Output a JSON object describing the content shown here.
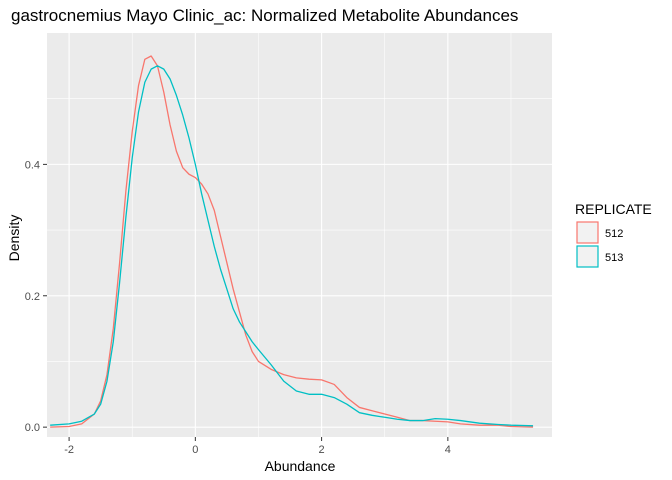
{
  "chart_data": {
    "type": "line",
    "title": "gastrocnemius Mayo Clinic_ac: Normalized Metabolite Abundances",
    "xlabel": "Abundance",
    "ylabel": "Density",
    "xlim": [
      -2.35,
      5.65
    ],
    "ylim": [
      -0.015,
      0.6
    ],
    "x_ticks": [
      -2,
      0,
      2,
      4
    ],
    "y_ticks": [
      0.0,
      0.2,
      0.4
    ],
    "x_tick_labels": [
      "-2",
      "0",
      "2",
      "4"
    ],
    "y_tick_labels": [
      "0.0",
      "0.2",
      "0.4"
    ],
    "grid": true,
    "legend": {
      "title": "REPLICATE",
      "position": "right"
    },
    "series": [
      {
        "name": "512",
        "color": "#F8766D",
        "x": [
          -2.3,
          -2.0,
          -1.8,
          -1.6,
          -1.5,
          -1.4,
          -1.3,
          -1.2,
          -1.1,
          -1.0,
          -0.9,
          -0.8,
          -0.7,
          -0.6,
          -0.5,
          -0.4,
          -0.3,
          -0.2,
          -0.1,
          0.0,
          0.1,
          0.2,
          0.3,
          0.4,
          0.5,
          0.6,
          0.7,
          0.8,
          0.9,
          1.0,
          1.2,
          1.4,
          1.6,
          1.8,
          2.0,
          2.2,
          2.4,
          2.6,
          2.8,
          3.0,
          3.2,
          3.4,
          3.6,
          3.8,
          4.0,
          4.2,
          4.5,
          4.8,
          5.0,
          5.35
        ],
        "y": [
          0.0,
          0.001,
          0.005,
          0.02,
          0.04,
          0.08,
          0.15,
          0.25,
          0.36,
          0.45,
          0.52,
          0.56,
          0.565,
          0.55,
          0.51,
          0.46,
          0.42,
          0.395,
          0.385,
          0.38,
          0.37,
          0.355,
          0.33,
          0.29,
          0.25,
          0.21,
          0.175,
          0.14,
          0.115,
          0.1,
          0.088,
          0.08,
          0.075,
          0.073,
          0.072,
          0.065,
          0.045,
          0.03,
          0.025,
          0.02,
          0.015,
          0.01,
          0.01,
          0.009,
          0.008,
          0.005,
          0.003,
          0.003,
          0.001,
          0.0
        ]
      },
      {
        "name": "513",
        "color": "#00BFC4",
        "x": [
          -2.3,
          -2.0,
          -1.8,
          -1.6,
          -1.5,
          -1.4,
          -1.3,
          -1.2,
          -1.1,
          -1.0,
          -0.9,
          -0.8,
          -0.7,
          -0.6,
          -0.5,
          -0.4,
          -0.3,
          -0.2,
          -0.1,
          0.0,
          0.1,
          0.2,
          0.3,
          0.4,
          0.5,
          0.6,
          0.7,
          0.8,
          0.9,
          1.0,
          1.2,
          1.4,
          1.6,
          1.8,
          2.0,
          2.2,
          2.4,
          2.6,
          2.8,
          3.0,
          3.2,
          3.4,
          3.6,
          3.8,
          4.0,
          4.2,
          4.5,
          4.8,
          5.0,
          5.35
        ],
        "y": [
          0.003,
          0.005,
          0.009,
          0.02,
          0.035,
          0.07,
          0.13,
          0.22,
          0.32,
          0.41,
          0.48,
          0.525,
          0.545,
          0.55,
          0.545,
          0.53,
          0.505,
          0.475,
          0.44,
          0.4,
          0.355,
          0.315,
          0.275,
          0.24,
          0.21,
          0.18,
          0.16,
          0.145,
          0.13,
          0.118,
          0.095,
          0.07,
          0.055,
          0.05,
          0.05,
          0.045,
          0.035,
          0.022,
          0.018,
          0.015,
          0.012,
          0.01,
          0.01,
          0.013,
          0.012,
          0.01,
          0.006,
          0.004,
          0.003,
          0.002
        ]
      }
    ]
  }
}
